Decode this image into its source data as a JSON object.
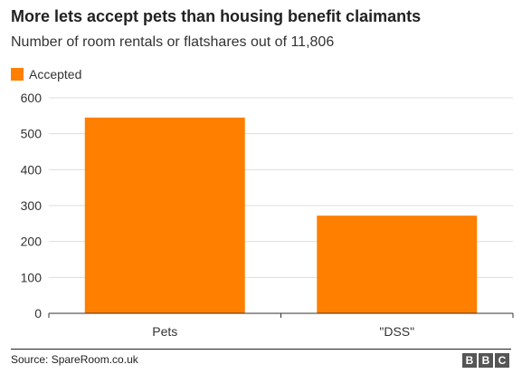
{
  "chart_data": {
    "type": "bar",
    "title": "More lets accept pets than housing benefit claimants",
    "subtitle": "Number of room rentals or flatshares out of 11,806",
    "categories": [
      "Pets",
      "\"DSS\""
    ],
    "series": [
      {
        "name": "Accepted",
        "values": [
          545,
          272
        ]
      }
    ],
    "ylim": [
      0,
      600
    ],
    "yticks": [
      0,
      100,
      200,
      300,
      400,
      500,
      600
    ],
    "grid": true,
    "legend": "top-left",
    "colors": {
      "bar": "#ff7f00",
      "grid": "#dddddd",
      "axis": "#333333"
    }
  },
  "footer": {
    "source": "Source: SpareRoom.co.uk",
    "logo": "BBC"
  }
}
